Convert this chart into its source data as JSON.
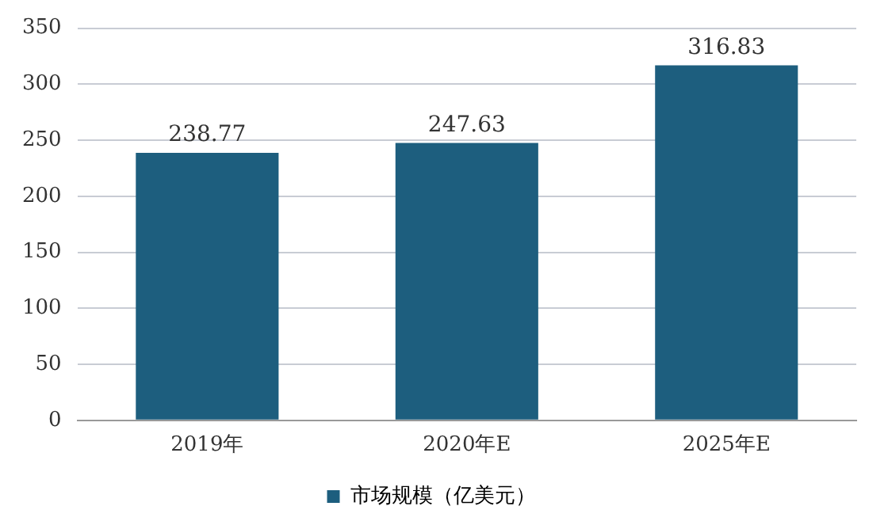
{
  "chart_data": {
    "type": "bar",
    "categories": [
      "2019年",
      "2020年E",
      "2025年E"
    ],
    "series": [
      {
        "name": "市场规模（亿美元）",
        "color": "#1d5e7e",
        "values": [
          238.77,
          247.63,
          316.83
        ]
      }
    ],
    "ylim": [
      0,
      350
    ],
    "yticks": [
      0,
      50,
      100,
      150,
      200,
      250,
      300,
      350
    ],
    "grid": "y",
    "legend": "bottom",
    "data_labels": true
  }
}
